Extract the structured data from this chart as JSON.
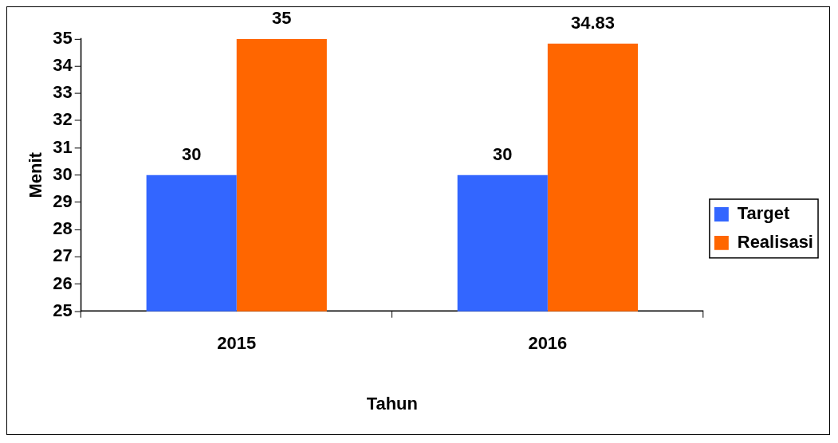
{
  "chart_data": {
    "type": "bar",
    "xlabel": "Tahun",
    "ylabel": "Menit",
    "categories": [
      "2015",
      "2016"
    ],
    "series": [
      {
        "name": "Target",
        "color": "#3366ff",
        "values": [
          30,
          30
        ]
      },
      {
        "name": "Realisasi",
        "color": "#ff6600",
        "values": [
          35,
          34.83
        ]
      }
    ],
    "ylim": [
      25,
      35
    ],
    "yticks": [
      25,
      26,
      27,
      28,
      29,
      30,
      31,
      32,
      33,
      34,
      35
    ],
    "grid": false,
    "legend": "right",
    "data_labels": true
  }
}
